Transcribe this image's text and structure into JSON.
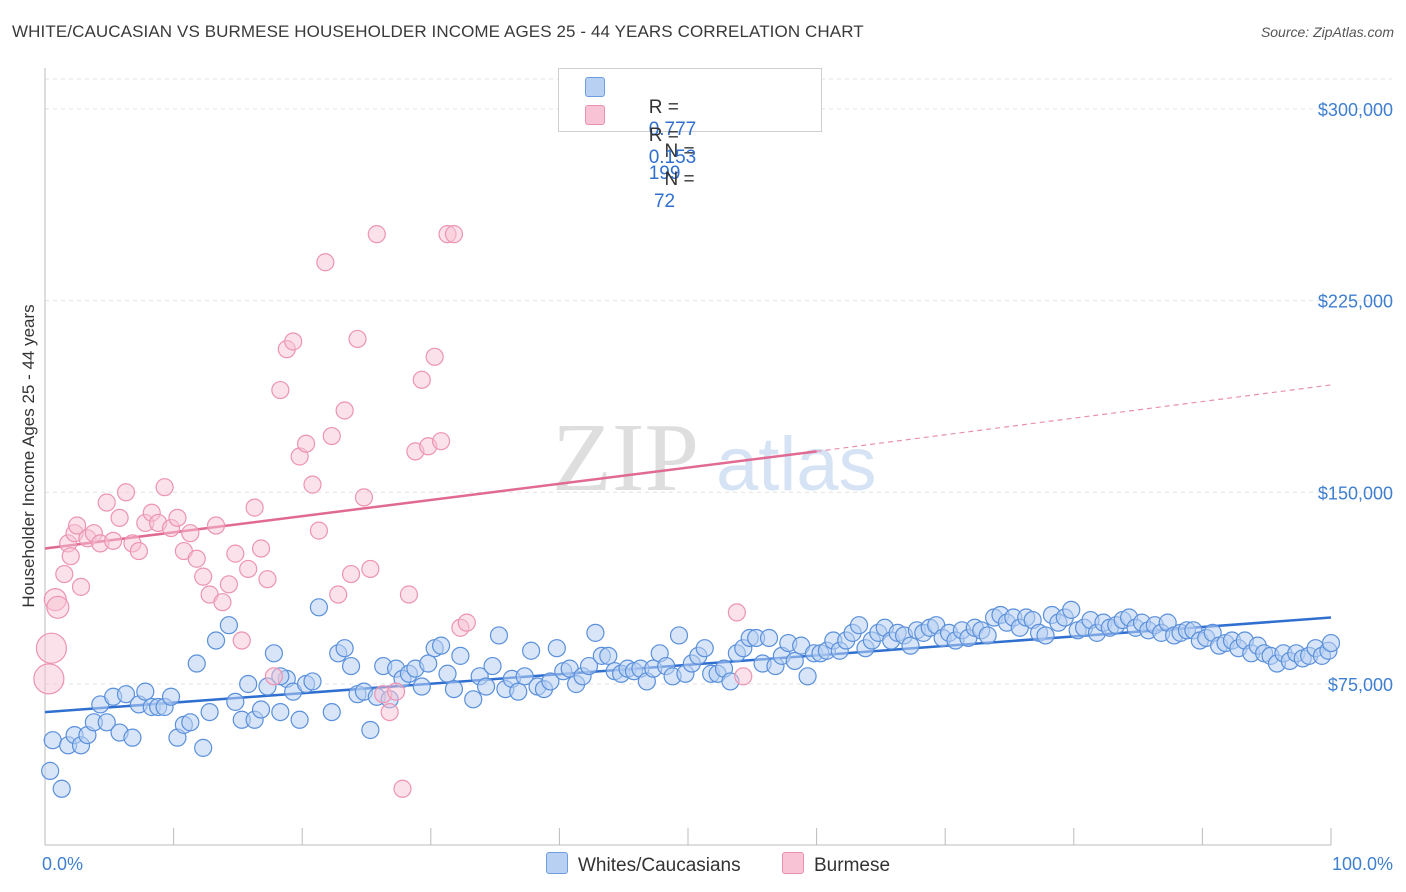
{
  "title": "WHITE/CAUCASIAN VS BURMESE HOUSEHOLDER INCOME AGES 25 - 44 YEARS CORRELATION CHART",
  "source": "Source: ZipAtlas.com",
  "watermark": {
    "zip": "ZIP",
    "atlas": "atlas"
  },
  "colors": {
    "white": "#4a86d8",
    "white_fill": "#b8d0f2",
    "burmese": "#e87aa0",
    "burmese_fill": "#f8c3d4",
    "accent": "#3f7fd0"
  },
  "legend": {
    "r_label": "R =",
    "n_label": "N =",
    "rows": [
      {
        "r": "0.777",
        "n": "199"
      },
      {
        "r": "0.153",
        "n": " 72"
      }
    ]
  },
  "bottom_legend": [
    "Whites/Caucasians",
    "Burmese"
  ],
  "chart_data": {
    "type": "scatter",
    "ylabel": "Householder Income Ages 25 - 44 years",
    "x_tick_labels": {
      "min": "0.0%",
      "max": "100.0%"
    },
    "y_tick_labels": [
      "$75,000",
      "$150,000",
      "$225,000",
      "$300,000"
    ],
    "y_ticks": [
      75000,
      150000,
      225000,
      300000
    ],
    "xlim": [
      0,
      100
    ],
    "ylim": [
      12000,
      316000
    ],
    "grid": true,
    "legend_position": "top-center",
    "series": [
      {
        "name": "Whites/Caucasians",
        "r": 0.777,
        "n": 199,
        "trend": {
          "x0": 0,
          "y0": 64000,
          "x1": 100,
          "y1": 101000
        },
        "points": [
          [
            0.4,
            41000
          ],
          [
            0.6,
            53000
          ],
          [
            1.3,
            34000
          ],
          [
            1.8,
            51000
          ],
          [
            2.3,
            55000
          ],
          [
            2.8,
            51000
          ],
          [
            3.3,
            55000
          ],
          [
            3.8,
            60000
          ],
          [
            4.3,
            67000
          ],
          [
            4.8,
            60000
          ],
          [
            5.3,
            70000
          ],
          [
            5.8,
            56000
          ],
          [
            6.3,
            71000
          ],
          [
            6.8,
            54000
          ],
          [
            7.3,
            67000
          ],
          [
            7.8,
            72000
          ],
          [
            8.3,
            66000
          ],
          [
            8.8,
            66000
          ],
          [
            9.3,
            66000
          ],
          [
            9.8,
            70000
          ],
          [
            10.3,
            54000
          ],
          [
            10.8,
            59000
          ],
          [
            11.3,
            60000
          ],
          [
            11.8,
            83000
          ],
          [
            12.3,
            50000
          ],
          [
            12.8,
            64000
          ],
          [
            13.3,
            92000
          ],
          [
            14.3,
            98000
          ],
          [
            14.8,
            68000
          ],
          [
            15.3,
            61000
          ],
          [
            15.8,
            75000
          ],
          [
            16.3,
            61000
          ],
          [
            16.8,
            65000
          ],
          [
            17.3,
            74000
          ],
          [
            17.8,
            87000
          ],
          [
            18.3,
            64000
          ],
          [
            18.8,
            77000
          ],
          [
            19.3,
            72000
          ],
          [
            19.8,
            61000
          ],
          [
            20.3,
            75000
          ],
          [
            20.8,
            76000
          ],
          [
            21.3,
            105000
          ],
          [
            22.3,
            64000
          ],
          [
            22.8,
            87000
          ],
          [
            23.3,
            89000
          ],
          [
            23.8,
            82000
          ],
          [
            24.3,
            71000
          ],
          [
            24.8,
            72000
          ],
          [
            25.3,
            57000
          ],
          [
            25.8,
            70000
          ],
          [
            26.3,
            82000
          ],
          [
            26.8,
            69000
          ],
          [
            27.3,
            81000
          ],
          [
            27.8,
            77000
          ],
          [
            28.3,
            79000
          ],
          [
            28.8,
            81000
          ],
          [
            29.3,
            74000
          ],
          [
            29.8,
            83000
          ],
          [
            30.3,
            89000
          ],
          [
            30.8,
            90000
          ],
          [
            31.3,
            79000
          ],
          [
            31.8,
            73000
          ],
          [
            32.3,
            86000
          ],
          [
            33.3,
            69000
          ],
          [
            33.8,
            78000
          ],
          [
            34.3,
            74000
          ],
          [
            34.8,
            82000
          ],
          [
            35.3,
            94000
          ],
          [
            35.8,
            73000
          ],
          [
            36.3,
            77000
          ],
          [
            36.8,
            72000
          ],
          [
            37.3,
            78000
          ],
          [
            37.8,
            88000
          ],
          [
            38.3,
            74000
          ],
          [
            38.8,
            73000
          ],
          [
            39.3,
            76000
          ],
          [
            39.8,
            89000
          ],
          [
            40.3,
            80000
          ],
          [
            40.8,
            81000
          ],
          [
            41.3,
            75000
          ],
          [
            41.8,
            78000
          ],
          [
            42.3,
            82000
          ],
          [
            42.8,
            95000
          ],
          [
            43.3,
            86000
          ],
          [
            43.8,
            86000
          ],
          [
            44.3,
            80000
          ],
          [
            44.8,
            79000
          ],
          [
            45.3,
            81000
          ],
          [
            45.8,
            80000
          ],
          [
            46.3,
            81000
          ],
          [
            46.8,
            76000
          ],
          [
            47.3,
            81000
          ],
          [
            47.8,
            87000
          ],
          [
            48.3,
            82000
          ],
          [
            48.8,
            78000
          ],
          [
            49.3,
            94000
          ],
          [
            49.8,
            79000
          ],
          [
            50.3,
            83000
          ],
          [
            50.8,
            86000
          ],
          [
            51.3,
            89000
          ],
          [
            51.8,
            79000
          ],
          [
            52.3,
            79000
          ],
          [
            52.8,
            81000
          ],
          [
            53.3,
            76000
          ],
          [
            53.8,
            87000
          ],
          [
            54.3,
            89000
          ],
          [
            54.8,
            93000
          ],
          [
            55.3,
            93000
          ],
          [
            55.8,
            83000
          ],
          [
            56.3,
            93000
          ],
          [
            56.8,
            82000
          ],
          [
            57.3,
            86000
          ],
          [
            57.8,
            91000
          ],
          [
            58.3,
            84000
          ],
          [
            58.8,
            90000
          ],
          [
            59.3,
            78000
          ],
          [
            59.8,
            87000
          ],
          [
            60.3,
            87000
          ],
          [
            60.8,
            88000
          ],
          [
            61.3,
            92000
          ],
          [
            61.8,
            88000
          ],
          [
            62.3,
            92000
          ],
          [
            62.8,
            95000
          ],
          [
            63.3,
            98000
          ],
          [
            63.8,
            89000
          ],
          [
            64.3,
            92000
          ],
          [
            64.8,
            95000
          ],
          [
            65.3,
            97000
          ],
          [
            65.8,
            92000
          ],
          [
            66.3,
            95000
          ],
          [
            66.8,
            94000
          ],
          [
            67.3,
            90000
          ],
          [
            67.8,
            96000
          ],
          [
            68.3,
            95000
          ],
          [
            68.8,
            97000
          ],
          [
            69.3,
            98000
          ],
          [
            69.8,
            93000
          ],
          [
            70.3,
            95000
          ],
          [
            70.8,
            92000
          ],
          [
            71.3,
            96000
          ],
          [
            71.8,
            93000
          ],
          [
            72.3,
            97000
          ],
          [
            72.8,
            96000
          ],
          [
            73.3,
            94000
          ],
          [
            73.8,
            101000
          ],
          [
            74.3,
            102000
          ],
          [
            74.8,
            99000
          ],
          [
            75.3,
            101000
          ],
          [
            75.8,
            97000
          ],
          [
            76.3,
            101000
          ],
          [
            76.8,
            100000
          ],
          [
            77.3,
            95000
          ],
          [
            77.8,
            94000
          ],
          [
            78.3,
            102000
          ],
          [
            78.8,
            99000
          ],
          [
            79.3,
            101000
          ],
          [
            79.8,
            104000
          ],
          [
            80.3,
            96000
          ],
          [
            80.8,
            97000
          ],
          [
            81.3,
            100000
          ],
          [
            81.8,
            95000
          ],
          [
            82.3,
            99000
          ],
          [
            82.8,
            97000
          ],
          [
            83.3,
            98000
          ],
          [
            83.8,
            100000
          ],
          [
            84.3,
            101000
          ],
          [
            84.8,
            97000
          ],
          [
            85.3,
            99000
          ],
          [
            85.8,
            96000
          ],
          [
            86.3,
            98000
          ],
          [
            86.8,
            95000
          ],
          [
            87.3,
            99000
          ],
          [
            87.8,
            94000
          ],
          [
            88.3,
            95000
          ],
          [
            88.8,
            96000
          ],
          [
            89.3,
            96000
          ],
          [
            89.8,
            92000
          ],
          [
            90.3,
            93000
          ],
          [
            90.8,
            95000
          ],
          [
            91.3,
            90000
          ],
          [
            91.8,
            91000
          ],
          [
            92.3,
            92000
          ],
          [
            92.8,
            89000
          ],
          [
            93.3,
            92000
          ],
          [
            93.8,
            87000
          ],
          [
            94.3,
            90000
          ],
          [
            94.8,
            87000
          ],
          [
            95.3,
            86000
          ],
          [
            95.8,
            83000
          ],
          [
            96.3,
            87000
          ],
          [
            96.8,
            84000
          ],
          [
            97.3,
            87000
          ],
          [
            97.8,
            85000
          ],
          [
            98.3,
            86000
          ],
          [
            98.8,
            89000
          ],
          [
            99.3,
            86000
          ],
          [
            99.8,
            88000
          ],
          [
            100.0,
            91000
          ],
          [
            18.3,
            78000
          ]
        ]
      },
      {
        "name": "Burmese",
        "r": 0.153,
        "n": 72,
        "trend": {
          "x0": 0,
          "y0": 128000,
          "x1": 60,
          "y1": 166000,
          "dash_x1": 100,
          "dash_y1": 192000
        },
        "points": [
          [
            0.3,
            77000
          ],
          [
            0.5,
            89000
          ],
          [
            0.8,
            108000
          ],
          [
            1.0,
            105000
          ],
          [
            1.5,
            118000
          ],
          [
            1.8,
            130000
          ],
          [
            2.0,
            125000
          ],
          [
            2.3,
            134000
          ],
          [
            2.5,
            137000
          ],
          [
            2.8,
            113000
          ],
          [
            3.3,
            132000
          ],
          [
            3.8,
            134000
          ],
          [
            4.3,
            130000
          ],
          [
            4.8,
            146000
          ],
          [
            5.3,
            131000
          ],
          [
            5.8,
            140000
          ],
          [
            6.3,
            150000
          ],
          [
            6.8,
            130000
          ],
          [
            7.3,
            127000
          ],
          [
            7.8,
            138000
          ],
          [
            8.3,
            142000
          ],
          [
            8.8,
            138000
          ],
          [
            9.3,
            152000
          ],
          [
            9.8,
            136000
          ],
          [
            10.3,
            140000
          ],
          [
            10.8,
            127000
          ],
          [
            11.3,
            134000
          ],
          [
            11.8,
            124000
          ],
          [
            12.3,
            117000
          ],
          [
            12.8,
            110000
          ],
          [
            13.3,
            137000
          ],
          [
            13.8,
            107000
          ],
          [
            14.3,
            114000
          ],
          [
            14.8,
            126000
          ],
          [
            15.3,
            92000
          ],
          [
            15.8,
            120000
          ],
          [
            16.3,
            144000
          ],
          [
            16.8,
            128000
          ],
          [
            17.3,
            116000
          ],
          [
            17.8,
            78000
          ],
          [
            18.3,
            190000
          ],
          [
            18.8,
            206000
          ],
          [
            19.3,
            209000
          ],
          [
            19.8,
            164000
          ],
          [
            20.3,
            169000
          ],
          [
            20.8,
            153000
          ],
          [
            21.3,
            135000
          ],
          [
            21.8,
            240000
          ],
          [
            22.3,
            172000
          ],
          [
            22.8,
            110000
          ],
          [
            23.3,
            182000
          ],
          [
            23.8,
            118000
          ],
          [
            24.3,
            210000
          ],
          [
            24.8,
            148000
          ],
          [
            25.3,
            120000
          ],
          [
            25.8,
            251000
          ],
          [
            26.3,
            71000
          ],
          [
            26.8,
            64000
          ],
          [
            27.3,
            72000
          ],
          [
            27.8,
            34000
          ],
          [
            28.3,
            110000
          ],
          [
            28.8,
            166000
          ],
          [
            29.3,
            194000
          ],
          [
            29.8,
            168000
          ],
          [
            30.3,
            203000
          ],
          [
            30.8,
            170000
          ],
          [
            31.3,
            251000
          ],
          [
            31.8,
            251000
          ],
          [
            32.3,
            97000
          ],
          [
            32.8,
            99000
          ],
          [
            53.8,
            103000
          ],
          [
            54.3,
            78000
          ]
        ]
      }
    ]
  }
}
